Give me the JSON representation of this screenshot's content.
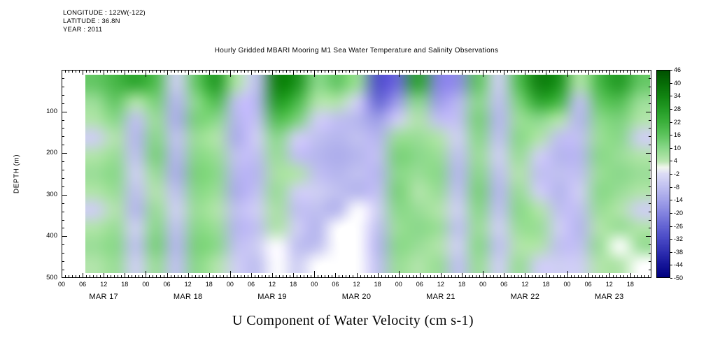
{
  "header": {
    "longitude": "LONGITUDE : 122W(-122)",
    "latitude": "LATITUDE : 36.8N",
    "year": "YEAR : 2011"
  },
  "title": "Hourly Gridded MBARI Mooring M1 Sea Water Temperature and Salinity Observations",
  "footer_title": "U Component of Water Velocity (cm s-1)",
  "axes": {
    "y_label": "DEPTH (m)",
    "y_ticks": [
      100,
      200,
      300,
      400,
      500
    ],
    "y_minor_step": 20,
    "depth_range_m": [
      0,
      500
    ],
    "x_hour_labels": [
      "00",
      "06",
      "12",
      "18"
    ],
    "x_day_labels": [
      "MAR 17",
      "MAR 18",
      "MAR 19",
      "MAR 20",
      "MAR 21",
      "MAR 22",
      "MAR 23"
    ],
    "x_range_hours": [
      0,
      168
    ]
  },
  "colorbar": {
    "ticks": [
      46,
      40,
      34,
      28,
      22,
      16,
      10,
      4,
      -2,
      -8,
      -14,
      -20,
      -26,
      -32,
      -38,
      -44,
      -50
    ],
    "value_range": [
      -50,
      46
    ],
    "stops": [
      {
        "v": -50,
        "c": "#000080"
      },
      {
        "v": -44,
        "c": "#16169a"
      },
      {
        "v": -38,
        "c": "#3030b2"
      },
      {
        "v": -32,
        "c": "#4a4ac6"
      },
      {
        "v": -26,
        "c": "#6666d4"
      },
      {
        "v": -20,
        "c": "#8585e0"
      },
      {
        "v": -14,
        "c": "#a3a3e9"
      },
      {
        "v": -8,
        "c": "#c0c0f0"
      },
      {
        "v": -2,
        "c": "#dcdcf5"
      },
      {
        "v": 1,
        "c": "#f2f6ef"
      },
      {
        "v": 4,
        "c": "#b9e6b0"
      },
      {
        "v": 10,
        "c": "#8ad88a"
      },
      {
        "v": 16,
        "c": "#5ec45e"
      },
      {
        "v": 22,
        "c": "#3cb13c"
      },
      {
        "v": 28,
        "c": "#249c26"
      },
      {
        "v": 34,
        "c": "#128512"
      },
      {
        "v": 40,
        "c": "#076d07"
      },
      {
        "v": 46,
        "c": "#005200"
      }
    ]
  },
  "chart_data": {
    "type": "heatmap",
    "title": "Hourly Gridded MBARI Mooring M1 Sea Water Temperature and Salinity Observations",
    "value_label": "U Component of Water Velocity",
    "value_units": "cm s-1",
    "value_range": [
      -50,
      46
    ],
    "x_step_hours": 6,
    "missing_value": null,
    "depths_m": [
      25,
      70,
      115,
      160,
      205,
      250,
      295,
      340,
      385,
      430,
      475
    ],
    "times": [
      "MAR 17 00",
      "MAR 17 06",
      "MAR 17 12",
      "MAR 17 18",
      "MAR 18 00",
      "MAR 18 06",
      "MAR 18 12",
      "MAR 18 18",
      "MAR 19 00",
      "MAR 19 06",
      "MAR 19 12",
      "MAR 19 18",
      "MAR 20 00",
      "MAR 20 06",
      "MAR 20 12",
      "MAR 20 18",
      "MAR 21 00",
      "MAR 21 06",
      "MAR 21 12",
      "MAR 21 18",
      "MAR 22 00",
      "MAR 22 06",
      "MAR 22 12",
      "MAR 22 18",
      "MAR 23 00",
      "MAR 23 06",
      "MAR 23 12",
      "MAR 23 18"
    ],
    "values_by_time": [
      [
        15,
        8,
        5,
        -5,
        5,
        8,
        5,
        -5,
        5,
        8,
        5
      ],
      [
        20,
        15,
        10,
        5,
        8,
        10,
        8,
        5,
        8,
        10,
        8
      ],
      [
        25,
        5,
        -8,
        -10,
        -8,
        -5,
        -8,
        -10,
        -5,
        -8,
        -5
      ],
      [
        18,
        12,
        8,
        10,
        12,
        8,
        5,
        8,
        10,
        12,
        8
      ],
      [
        -5,
        -10,
        -12,
        -8,
        -10,
        -12,
        -8,
        -5,
        -8,
        -10,
        -8
      ],
      [
        15,
        10,
        12,
        8,
        10,
        12,
        10,
        8,
        10,
        12,
        10
      ],
      [
        28,
        18,
        10,
        5,
        8,
        10,
        8,
        5,
        8,
        10,
        5
      ],
      [
        5,
        -8,
        -10,
        -12,
        -8,
        -10,
        -12,
        -8,
        -10,
        -8,
        -5
      ],
      [
        -8,
        -10,
        -8,
        -5,
        -8,
        -10,
        -8,
        -5,
        -8,
        -5,
        -8
      ],
      [
        35,
        28,
        18,
        10,
        8,
        6,
        8,
        6,
        5,
        null,
        null
      ],
      [
        30,
        20,
        12,
        -5,
        -8,
        5,
        -5,
        -8,
        -5,
        -8,
        -5
      ],
      [
        10,
        5,
        -5,
        -8,
        -10,
        -8,
        -5,
        -8,
        -10,
        -8,
        null
      ],
      [
        15,
        5,
        -8,
        -10,
        -12,
        -10,
        -8,
        -10,
        null,
        null,
        null
      ],
      [
        8,
        -5,
        -10,
        -8,
        -10,
        -8,
        -10,
        null,
        null,
        null,
        null
      ],
      [
        -30,
        -25,
        -15,
        -10,
        -8,
        -10,
        -8,
        -5,
        -8,
        -10,
        -8
      ],
      [
        -25,
        -15,
        -5,
        8,
        12,
        10,
        12,
        10,
        8,
        10,
        8
      ],
      [
        25,
        10,
        5,
        8,
        10,
        8,
        5,
        8,
        10,
        8,
        5
      ],
      [
        -20,
        -15,
        -8,
        5,
        8,
        10,
        8,
        5,
        8,
        5,
        8
      ],
      [
        -18,
        -10,
        -8,
        -5,
        -8,
        -10,
        -8,
        -5,
        -8,
        -5,
        -8
      ],
      [
        15,
        10,
        12,
        10,
        8,
        10,
        12,
        10,
        8,
        10,
        8
      ],
      [
        -5,
        -8,
        -10,
        -8,
        -5,
        -8,
        -10,
        -8,
        -5,
        -8,
        -5
      ],
      [
        18,
        12,
        8,
        10,
        8,
        5,
        8,
        10,
        8,
        5,
        8
      ],
      [
        35,
        25,
        10,
        5,
        -5,
        -8,
        -5,
        5,
        8,
        5,
        -5
      ],
      [
        30,
        20,
        5,
        -8,
        -10,
        -8,
        -10,
        -8,
        -5,
        -8,
        -5
      ],
      [
        5,
        -8,
        -10,
        -8,
        -10,
        -8,
        -5,
        -8,
        -10,
        -8,
        -5
      ],
      [
        20,
        15,
        10,
        8,
        10,
        8,
        10,
        8,
        5,
        8,
        5
      ],
      [
        28,
        18,
        12,
        10,
        8,
        10,
        8,
        5,
        8,
        null,
        5
      ],
      [
        15,
        8,
        5,
        -5,
        5,
        8,
        5,
        -5,
        5,
        8,
        null
      ]
    ]
  }
}
